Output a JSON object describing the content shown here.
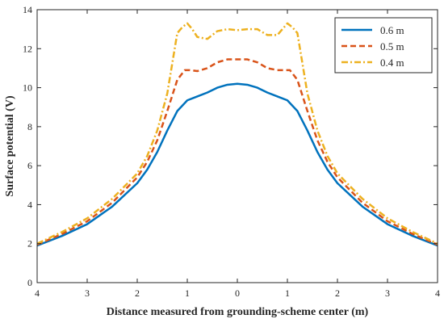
{
  "chart_data": {
    "type": "line",
    "title": "",
    "xlabel": "Distance measured from grounding-scheme center (m)",
    "ylabel": "Surface potential (V)",
    "xlim": [
      -4,
      4
    ],
    "ylim": [
      0,
      14
    ],
    "x_ticks": [
      -4,
      -3,
      -2,
      -1,
      0,
      1,
      2,
      3,
      4
    ],
    "x_tick_labels": [
      "4",
      "3",
      "2",
      "1",
      "0",
      "1",
      "2",
      "3",
      "4"
    ],
    "y_ticks": [
      0,
      2,
      4,
      6,
      8,
      10,
      12,
      14
    ],
    "y_tick_labels": [
      "0",
      "2",
      "4",
      "6",
      "8",
      "10",
      "12",
      "14"
    ],
    "grid": false,
    "legend_position": "top-right",
    "series": [
      {
        "name": "0.6 m",
        "color": "#0072BD",
        "line_style": "solid",
        "x": [
          -4,
          -3.5,
          -3,
          -2.5,
          -2,
          -1.8,
          -1.6,
          -1.4,
          -1.2,
          -1,
          -0.8,
          -0.6,
          -0.4,
          -0.2,
          0,
          0.2,
          0.4,
          0.6,
          0.8,
          1,
          1.2,
          1.4,
          1.6,
          1.8,
          2,
          2.5,
          3,
          3.5,
          4
        ],
        "y": [
          1.9,
          2.4,
          3.0,
          3.9,
          5.1,
          5.8,
          6.7,
          7.8,
          8.8,
          9.35,
          9.55,
          9.75,
          10.0,
          10.15,
          10.2,
          10.15,
          10.0,
          9.75,
          9.55,
          9.35,
          8.8,
          7.8,
          6.7,
          5.8,
          5.1,
          3.9,
          3.0,
          2.4,
          1.9
        ]
      },
      {
        "name": "0.5 m",
        "color": "#D95319",
        "line_style": "dashed",
        "x": [
          -4,
          -3.5,
          -3,
          -2.5,
          -2,
          -1.8,
          -1.6,
          -1.4,
          -1.2,
          -1.05,
          -0.95,
          -0.8,
          -0.6,
          -0.4,
          -0.2,
          0,
          0.2,
          0.4,
          0.6,
          0.8,
          0.95,
          1.05,
          1.2,
          1.4,
          1.6,
          1.8,
          2,
          2.5,
          3,
          3.5,
          4
        ],
        "y": [
          1.95,
          2.5,
          3.15,
          4.1,
          5.4,
          6.2,
          7.3,
          8.8,
          10.4,
          10.9,
          10.9,
          10.85,
          11.0,
          11.3,
          11.45,
          11.45,
          11.45,
          11.3,
          11.0,
          10.9,
          10.9,
          10.9,
          10.4,
          8.8,
          7.3,
          6.2,
          5.4,
          4.1,
          3.15,
          2.5,
          1.95
        ]
      },
      {
        "name": "0.4 m",
        "color": "#EDB120",
        "line_style": "dashdot",
        "x": [
          -4,
          -3.5,
          -3,
          -2.5,
          -2,
          -1.8,
          -1.6,
          -1.4,
          -1.2,
          -1.1,
          -1,
          -0.9,
          -0.8,
          -0.6,
          -0.4,
          -0.2,
          0,
          0.2,
          0.4,
          0.6,
          0.8,
          0.9,
          1,
          1.1,
          1.2,
          1.4,
          1.6,
          1.8,
          2,
          2.5,
          3,
          3.5,
          4
        ],
        "y": [
          2.0,
          2.6,
          3.3,
          4.3,
          5.6,
          6.5,
          7.8,
          9.7,
          12.8,
          13.1,
          13.3,
          13.0,
          12.6,
          12.5,
          12.9,
          13.0,
          12.95,
          13.0,
          13.0,
          12.7,
          12.7,
          13.0,
          13.3,
          13.1,
          12.8,
          9.7,
          7.8,
          6.5,
          5.6,
          4.3,
          3.3,
          2.6,
          2.0
        ]
      }
    ]
  }
}
